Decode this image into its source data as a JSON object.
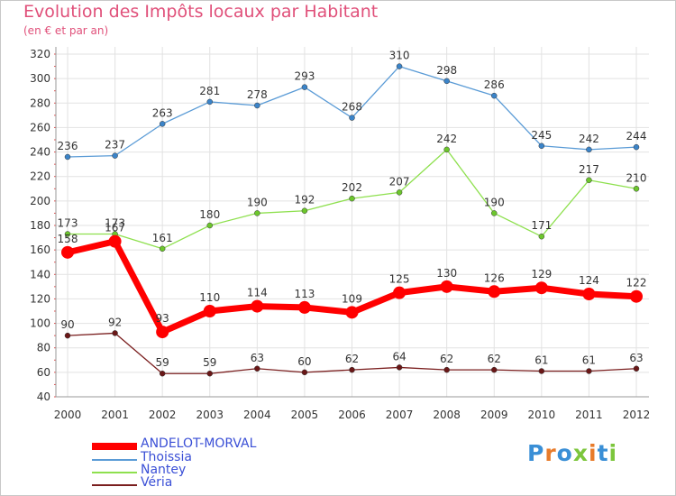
{
  "header": {
    "title": "Evolution des Impôts locaux par Habitant",
    "subtitle": "(en € et par an)"
  },
  "logo": {
    "letters": [
      "P",
      "r",
      "o",
      "x",
      "i",
      "t",
      "i"
    ],
    "colors": [
      "#3a8fd6",
      "#e87b2a",
      "#3a8fd6",
      "#7cc63c",
      "#e87b2a",
      "#3a8fd6",
      "#7cc63c"
    ]
  },
  "chart_data": {
    "type": "line",
    "title": "Evolution des Impôts locaux par Habitant",
    "subtitle": "(en € et par an)",
    "x": [
      "2000",
      "2001",
      "2002",
      "2003",
      "2004",
      "2005",
      "2006",
      "2007",
      "2008",
      "2009",
      "2010",
      "2011",
      "2012"
    ],
    "ylim": [
      40,
      320
    ],
    "yticks": [
      40,
      60,
      80,
      100,
      120,
      140,
      160,
      180,
      200,
      220,
      240,
      260,
      280,
      300,
      320
    ],
    "grid": true,
    "legend_position": "bottom-left",
    "series": [
      {
        "name": "ANDELOT-MORVAL",
        "color": "#ff0000",
        "values": [
          158,
          167,
          93,
          110,
          114,
          113,
          109,
          125,
          130,
          126,
          129,
          124,
          122
        ]
      },
      {
        "name": "Thoissia",
        "color": "#5a9bd6",
        "values": [
          236,
          237,
          263,
          281,
          278,
          293,
          268,
          310,
          298,
          286,
          245,
          242,
          244
        ]
      },
      {
        "name": "Nantey",
        "color": "#8ee04e",
        "values": [
          173,
          173,
          161,
          180,
          190,
          192,
          202,
          207,
          242,
          190,
          171,
          217,
          210
        ]
      },
      {
        "name": "Véria",
        "color": "#7a1e1e",
        "values": [
          90,
          92,
          59,
          59,
          63,
          60,
          62,
          64,
          62,
          62,
          61,
          61,
          63
        ]
      }
    ]
  }
}
